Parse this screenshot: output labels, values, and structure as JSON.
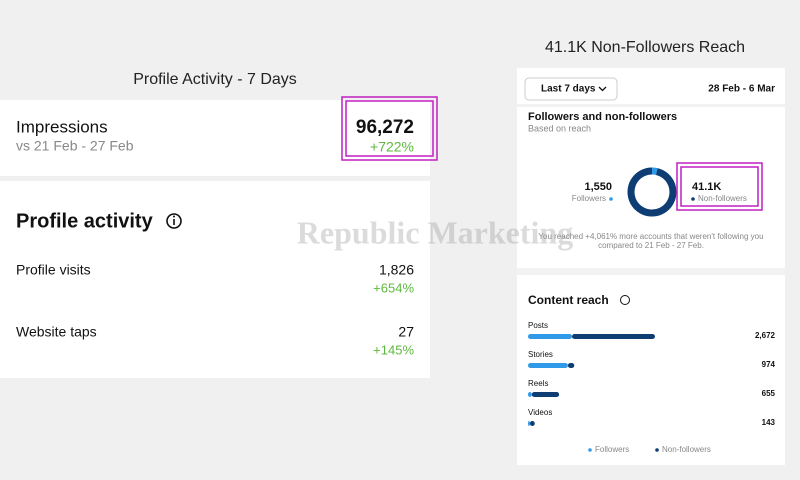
{
  "left": {
    "title": "Profile Activity - 7 Days",
    "impressions": {
      "label": "Impressions",
      "compare": "vs 21 Feb - 27 Feb",
      "value": "96,272",
      "change": "+722%"
    },
    "profile_activity": {
      "title": "Profile activity",
      "rows": [
        {
          "label": "Profile visits",
          "value": "1,826",
          "change": "+654%"
        },
        {
          "label": "Website taps",
          "value": "27",
          "change": "+145%"
        }
      ]
    }
  },
  "right": {
    "title": "41.1K Non-Followers Reach",
    "range_button": "Last 7 days",
    "date_range": "28 Feb - 6 Mar",
    "donut": {
      "type": "pie",
      "title": "Followers and non-followers",
      "subtitle": "Based on reach",
      "series": [
        {
          "name": "Followers",
          "color": "#2f9be8",
          "value": 1550,
          "value_label": "1,550"
        },
        {
          "name": "Non-followers",
          "color": "#0d3d73",
          "value": 41100,
          "value_label": "41.1K"
        }
      ],
      "note_lines": [
        "You reached +4,061% more accounts that weren't following you",
        "compared to 21 Feb - 27 Feb."
      ]
    },
    "content_reach": {
      "type": "bar",
      "title": "Content reach",
      "rows": [
        {
          "label": "Posts",
          "followers": 926,
          "non_followers": 1746,
          "total": "2,672"
        },
        {
          "label": "Stories",
          "followers": 840,
          "non_followers": 134,
          "total": "974"
        },
        {
          "label": "Reels",
          "followers": 80,
          "non_followers": 575,
          "total": "655"
        },
        {
          "label": "Videos",
          "followers": 40,
          "non_followers": 103,
          "total": "143"
        }
      ]
    }
  },
  "watermark": "Republic Marketing"
}
